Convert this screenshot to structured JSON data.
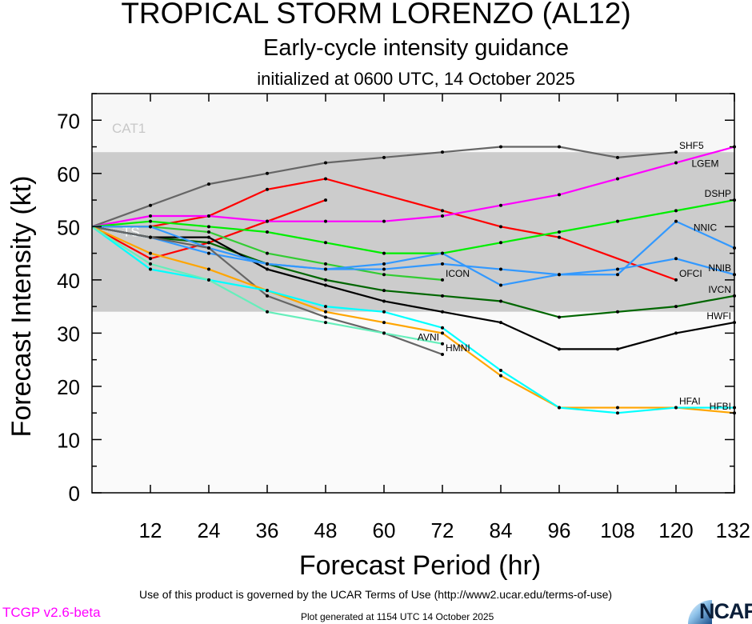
{
  "chart_data": {
    "type": "line",
    "title": "TROPICAL STORM LORENZO (AL12)",
    "subtitle": "Early-cycle intensity guidance",
    "subtitle2": "initialized at 0600 UTC, 14 October 2025",
    "xlabel": "Forecast Period (hr)",
    "ylabel": "Forecast Intensity (kt)",
    "xlim": [
      0,
      132
    ],
    "ylim": [
      0,
      75
    ],
    "xticks": [
      12,
      24,
      36,
      48,
      60,
      72,
      84,
      96,
      108,
      120,
      132
    ],
    "yticks": [
      0,
      10,
      20,
      30,
      40,
      50,
      60,
      70
    ],
    "bands": [
      {
        "label": "CAT1",
        "from": 64,
        "to": 75,
        "color": "#f7f7f7"
      },
      {
        "label": "TS",
        "from": 34,
        "to": 64,
        "color": "#cccccc"
      },
      {
        "label": "",
        "from": 0,
        "to": 34,
        "color": "#fafafa"
      }
    ],
    "x": [
      0,
      12,
      24,
      36,
      48,
      60,
      72,
      84,
      96,
      108,
      120,
      132
    ],
    "series": [
      {
        "name": "SHF5",
        "color": "#666666",
        "values": [
          50,
          54,
          58,
          60,
          62,
          63,
          64,
          65,
          65,
          63,
          64,
          null
        ]
      },
      {
        "name": "OFCI",
        "color": "#ff0000",
        "values": [
          50,
          50,
          52,
          57,
          59,
          null,
          53,
          50,
          48,
          null,
          40,
          null
        ]
      },
      {
        "name": "",
        "color": "#ff0000",
        "values": [
          50,
          44,
          47,
          51,
          55,
          null,
          null,
          null,
          null,
          null,
          null,
          null
        ]
      },
      {
        "name": "LGEM",
        "color": "#ff00ff",
        "values": [
          50,
          52,
          52,
          51,
          51,
          51,
          52,
          54,
          56,
          59,
          62,
          65
        ]
      },
      {
        "name": "DSHP",
        "color": "#00ee00",
        "values": [
          50,
          51,
          50,
          49,
          47,
          45,
          45,
          47,
          49,
          51,
          53,
          55
        ]
      },
      {
        "name": "ICON",
        "color": "#33cc33",
        "values": [
          50,
          50,
          49,
          45,
          43,
          41,
          40,
          null,
          null,
          null,
          null,
          null
        ]
      },
      {
        "name": "IVCN",
        "color": "#006600",
        "values": [
          50,
          48,
          47,
          43,
          40,
          38,
          37,
          36,
          33,
          34,
          35,
          37
        ]
      },
      {
        "name": "HWFI",
        "color": "#000000",
        "values": [
          50,
          48,
          48,
          42,
          39,
          36,
          34,
          32,
          27,
          27,
          30,
          32
        ]
      },
      {
        "name": "NNIC",
        "color": "#3399ff",
        "values": [
          50,
          50,
          46,
          43,
          42,
          43,
          45,
          39,
          41,
          41,
          51,
          46
        ]
      },
      {
        "name": "NNIB",
        "color": "#3399ff",
        "values": [
          50,
          48,
          45,
          43,
          42,
          42,
          43,
          42,
          41,
          42,
          44,
          41
        ]
      },
      {
        "name": "HMNI",
        "color": "#666666",
        "values": [
          50,
          48,
          46,
          37,
          33,
          30,
          26,
          null,
          null,
          null,
          null,
          null
        ]
      },
      {
        "name": "HFBI",
        "color": "#ffa500",
        "values": [
          50,
          45,
          42,
          38,
          34,
          32,
          30,
          22,
          16,
          16,
          16,
          15
        ]
      },
      {
        "name": "HFAI",
        "color": "#00ffff",
        "values": [
          50,
          42,
          40,
          38,
          35,
          34,
          31,
          23,
          16,
          15,
          16,
          16
        ]
      },
      {
        "name": "AVNI",
        "color": "#66eebb",
        "values": [
          50,
          43,
          40,
          34,
          32,
          30,
          28,
          null,
          null,
          null,
          null,
          null
        ]
      }
    ]
  },
  "footer": {
    "terms": "Use of this product is governed by the UCAR Terms of Use (http://www2.ucar.edu/terms-of-use)",
    "version": "TCGP v2.6-beta",
    "version_color": "#ff00ff",
    "generated": "Plot generated at 1154 UTC   14 October 2025",
    "logo": "NCAR"
  }
}
